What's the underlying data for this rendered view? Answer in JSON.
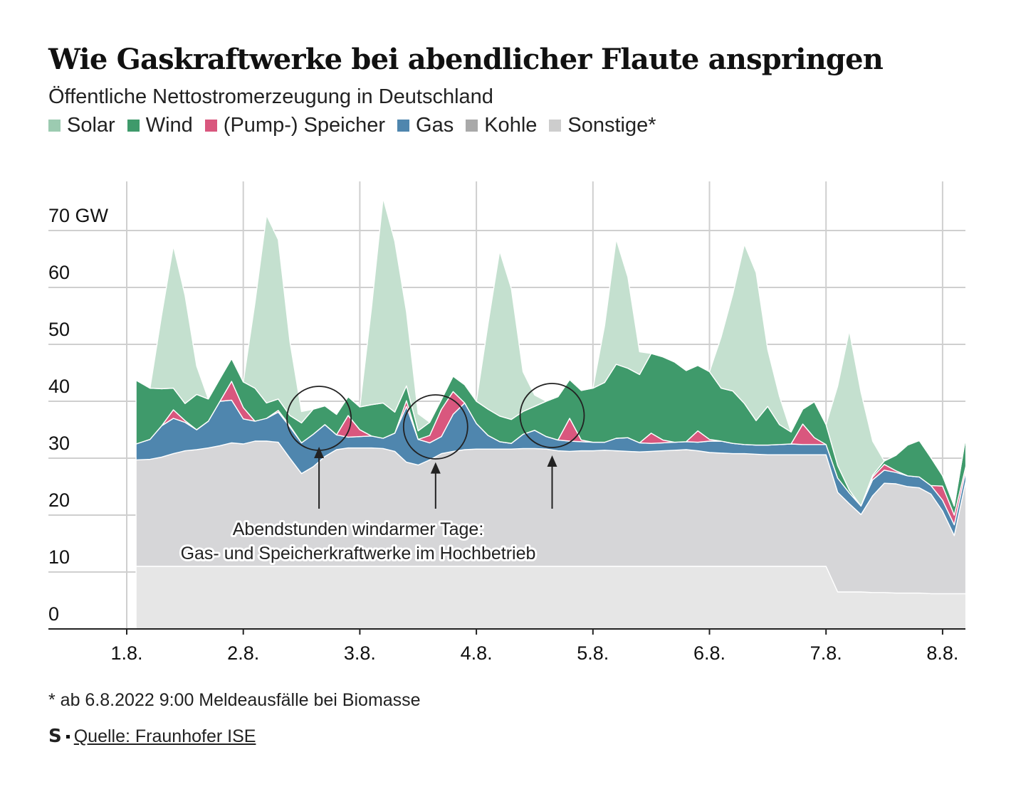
{
  "header": {
    "title": "Wie Gaskraftwerke bei abendlicher Flaute anspringen",
    "subtitle": "Öffentliche Nettostromerzeugung in Deutschland"
  },
  "legend": [
    {
      "label": "Solar",
      "color": "#9ccbb1"
    },
    {
      "label": "Wind",
      "color": "#3f9a6b"
    },
    {
      "label": "(Pump-) Speicher",
      "color": "#d9577e"
    },
    {
      "label": "Gas",
      "color": "#4f86ae"
    },
    {
      "label": "Kohle",
      "color": "#a9a9a9"
    },
    {
      "label": "Sonstige*",
      "color": "#cdcdcd"
    }
  ],
  "chart_data": {
    "type": "area",
    "stacked": true,
    "unit": "GW",
    "x_unit": "day (1 = 1.8.2022 0:00)",
    "x_ticks": [
      {
        "x": 1,
        "label": "1.8."
      },
      {
        "x": 2,
        "label": "2.8."
      },
      {
        "x": 3,
        "label": "3.8."
      },
      {
        "x": 4,
        "label": "4.8."
      },
      {
        "x": 5,
        "label": "5.8."
      },
      {
        "x": 6,
        "label": "6.8."
      },
      {
        "x": 7,
        "label": "7.8."
      },
      {
        "x": 8,
        "label": "8.8."
      }
    ],
    "y_ticks": [
      {
        "y": 0,
        "label": "0"
      },
      {
        "y": 10,
        "label": "10"
      },
      {
        "y": 20,
        "label": "20"
      },
      {
        "y": 30,
        "label": "30"
      },
      {
        "y": 40,
        "label": "40"
      },
      {
        "y": 50,
        "label": "50"
      },
      {
        "y": 60,
        "label": "60"
      },
      {
        "y": 70,
        "label": "70 GW"
      }
    ],
    "xlim": [
      1,
      8.2
    ],
    "ylim": [
      0,
      80
    ],
    "grid": true,
    "legend_position": "top",
    "x": [
      1.08,
      1.2,
      1.3,
      1.4,
      1.5,
      1.6,
      1.7,
      1.8,
      1.9,
      2.0,
      2.1,
      2.2,
      2.3,
      2.4,
      2.5,
      2.6,
      2.7,
      2.8,
      2.9,
      3.0,
      3.1,
      3.2,
      3.3,
      3.4,
      3.5,
      3.6,
      3.7,
      3.8,
      3.9,
      4.0,
      4.1,
      4.2,
      4.3,
      4.4,
      4.5,
      4.6,
      4.7,
      4.8,
      4.9,
      5.0,
      5.1,
      5.2,
      5.3,
      5.4,
      5.5,
      5.6,
      5.7,
      5.8,
      5.9,
      6.0,
      6.1,
      6.2,
      6.3,
      6.4,
      6.5,
      6.6,
      6.7,
      6.8,
      6.9,
      7.0,
      7.1,
      7.2,
      7.3,
      7.4,
      7.5,
      7.6,
      7.7,
      7.8,
      7.9,
      8.0,
      8.1,
      8.2
    ],
    "series": [
      {
        "name": "Sonstige*",
        "color": "#e6e6e6",
        "values": [
          11,
          11,
          11,
          11,
          11,
          11,
          11,
          11,
          11,
          11,
          11,
          11,
          11,
          11,
          11,
          11,
          11,
          11,
          11,
          11,
          11,
          11,
          11,
          11,
          11,
          11,
          11,
          11,
          11,
          11,
          11,
          11,
          11,
          11,
          11,
          11,
          11,
          11,
          11,
          11,
          11,
          11,
          11,
          11,
          11,
          11,
          11,
          11,
          11,
          11,
          11,
          11,
          11,
          11,
          11,
          11,
          11,
          11,
          11,
          11,
          6.5,
          6.5,
          6.5,
          6.4,
          6.4,
          6.3,
          6.3,
          6.3,
          6.2,
          6.2,
          6.2,
          6.2
        ]
      },
      {
        "name": "Kohle",
        "color": "#d6d6d8",
        "values": [
          18.7,
          18.8,
          19.2,
          19.8,
          20.3,
          20.5,
          20.8,
          21.2,
          21.7,
          21.5,
          22,
          22,
          21.8,
          19,
          16.3,
          17.5,
          19.3,
          20.5,
          20.8,
          20.8,
          20.8,
          20.7,
          20.2,
          18.3,
          17.8,
          18.7,
          19.8,
          20.2,
          20.5,
          20.6,
          20.6,
          20.6,
          20.6,
          20.7,
          20.7,
          20.6,
          20.3,
          20.2,
          20.3,
          20.3,
          20.4,
          20.3,
          20.2,
          20.1,
          20.2,
          20.3,
          20.4,
          20.5,
          20.3,
          20,
          19.9,
          19.8,
          19.8,
          19.7,
          19.6,
          19.6,
          19.6,
          19.6,
          19.6,
          19.6,
          17.5,
          15.5,
          13.6,
          17,
          19.2,
          19.2,
          18.7,
          18.5,
          17.5,
          14.5,
          10.2,
          19.8
        ]
      },
      {
        "name": "Gas",
        "color": "#4f86ae",
        "values": [
          2.8,
          3.5,
          5.5,
          6.2,
          5,
          3.5,
          4.7,
          7.8,
          7.5,
          4.4,
          3.5,
          4,
          5.3,
          5.5,
          5.4,
          5.7,
          5.6,
          2.6,
          1.9,
          2,
          2.1,
          1.8,
          3.2,
          9.8,
          4.5,
          3,
          3,
          6.5,
          8.2,
          4.5,
          2.4,
          1.3,
          1,
          2.5,
          3.2,
          2.2,
          1.9,
          1.8,
          1.6,
          1.5,
          1.4,
          2.2,
          2.4,
          1.6,
          1.4,
          1.4,
          1.4,
          1.4,
          1.5,
          2,
          2.1,
          1.8,
          1.6,
          1.6,
          1.7,
          1.8,
          1.9,
          1.8,
          1.8,
          1.8,
          2.5,
          1.9,
          1.5,
          2.8,
          2.3,
          2.0,
          1.9,
          1.9,
          1.5,
          1.9,
          1.9,
          1.8
        ]
      },
      {
        "name": "(Pump-) Speicher",
        "color": "#d9577e",
        "values": [
          0,
          0,
          0,
          1.5,
          0.3,
          0,
          0,
          0,
          3.3,
          2,
          0,
          0,
          0.3,
          0.2,
          0,
          0,
          0,
          0,
          3.8,
          1.2,
          0,
          0,
          0,
          1,
          0,
          1.3,
          4.8,
          4,
          0,
          0,
          0,
          0,
          0,
          0,
          0,
          0,
          0,
          4,
          0.3,
          0,
          0,
          0,
          0,
          0,
          1.8,
          0.5,
          0,
          0,
          2,
          0.3,
          0,
          0,
          0,
          0,
          0,
          0,
          0,
          3.6,
          1.2,
          0,
          0,
          0,
          0,
          0.5,
          1,
          0.3,
          0,
          0,
          0,
          2.5,
          1.7,
          0.8
        ]
      },
      {
        "name": "Wind",
        "color": "#3f9a6b",
        "values": [
          11.2,
          9,
          6.5,
          3.8,
          3,
          6.2,
          3.9,
          4,
          4,
          4.5,
          5.8,
          2.7,
          2,
          1.8,
          3.5,
          4.4,
          3.3,
          3.6,
          3.3,
          4,
          5.5,
          6.2,
          3.7,
          2.6,
          1.5,
          2.3,
          1.7,
          2.7,
          3.2,
          3.9,
          4.6,
          4.5,
          4.2,
          4,
          4.2,
          6.2,
          7.6,
          6.8,
          8.7,
          9.5,
          10.5,
          13,
          12.2,
          12,
          14,
          14.6,
          14.1,
          12.5,
          11.5,
          11.9,
          9.3,
          9.2,
          7.2,
          4.3,
          6.8,
          3.5,
          2.1,
          2.6,
          6.3,
          3.5,
          2.2,
          0.5,
          0,
          0.3,
          0.6,
          2.7,
          5.4,
          6.4,
          4.9,
          1.8,
          1.6,
          5.2
        ]
      },
      {
        "name": "Solar",
        "color": "#c4e0cf",
        "values": [
          0,
          0,
          13,
          25,
          19,
          5,
          0,
          0,
          0,
          0,
          15,
          33,
          28,
          13,
          2,
          0,
          0,
          0,
          0,
          0,
          17,
          36,
          30,
          13,
          3,
          0,
          0,
          0,
          0,
          0,
          15,
          29,
          23,
          7,
          2,
          0,
          0,
          0,
          0,
          0,
          10,
          22,
          16,
          4,
          0,
          0,
          0,
          0,
          0,
          0,
          9,
          17,
          28,
          26,
          10,
          5,
          0,
          0,
          0,
          0,
          14,
          28,
          20,
          6,
          0,
          0,
          0,
          0,
          0,
          0,
          0,
          0
        ]
      }
    ],
    "annotations": [
      {
        "text_lines": [
          "Abendstunden windarmer Tage:",
          "Gas- und Speicherkraftwerke im Hochbetrieb"
        ],
        "circles": [
          {
            "x": 2.65,
            "y": 37
          },
          {
            "x": 3.65,
            "y": 35.5
          },
          {
            "x": 4.65,
            "y": 37.5
          }
        ]
      }
    ]
  },
  "footnote": "* ab 6.8.2022 9:00 Meldeausfälle bei Biomasse",
  "source": {
    "logo": "S",
    "text": "Quelle: Fraunhofer ISE"
  }
}
